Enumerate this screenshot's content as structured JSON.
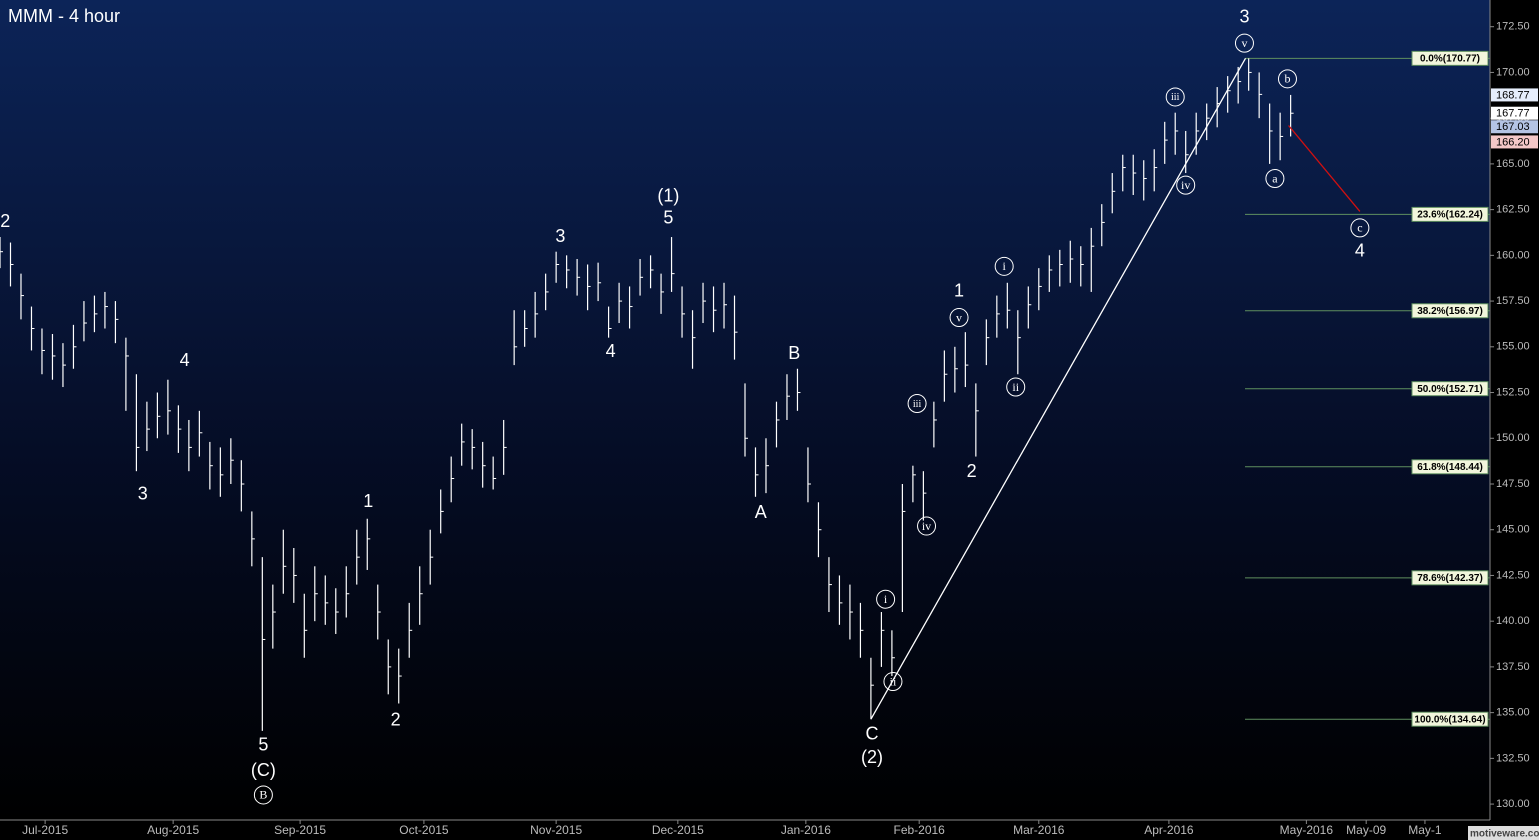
{
  "chart_data": {
    "type": "ohlc",
    "title": "MMM - 4 hour",
    "watermark": "motiveware.com",
    "x": [
      0,
      1,
      2,
      3,
      4,
      5,
      6,
      7,
      8,
      9,
      10,
      11,
      12,
      13,
      14,
      15,
      16,
      17,
      18,
      19,
      20,
      21,
      22,
      23,
      24,
      25,
      26,
      27,
      28,
      29,
      30,
      31,
      32,
      33,
      34,
      35,
      36,
      37,
      38,
      39,
      40,
      41,
      42,
      43,
      44,
      45,
      46,
      47,
      48,
      49,
      50,
      51,
      52,
      53,
      54,
      55,
      56,
      57,
      58,
      59,
      60,
      61,
      62,
      63,
      64,
      65,
      66,
      67,
      68,
      69,
      70,
      71,
      72,
      73,
      74,
      75,
      76,
      77,
      78,
      79,
      80,
      81,
      82,
      83,
      84,
      85,
      86,
      87,
      88,
      89,
      90,
      91,
      92,
      93,
      94,
      95,
      96,
      97,
      98,
      99,
      100,
      101,
      102,
      103,
      104,
      105,
      106,
      107,
      108,
      109,
      110,
      111,
      112,
      113,
      114,
      115,
      116,
      117,
      118,
      119,
      120,
      121,
      122,
      123
    ],
    "high": [
      161.0,
      160.7,
      159.0,
      157.2,
      156.0,
      155.7,
      155.2,
      156.2,
      157.5,
      157.8,
      158.0,
      157.5,
      155.5,
      153.5,
      152.0,
      152.5,
      153.2,
      151.8,
      151.0,
      151.5,
      149.8,
      149.5,
      150.0,
      148.8,
      146.0,
      143.5,
      142.0,
      145.0,
      144.0,
      141.5,
      143.0,
      142.5,
      141.8,
      143.0,
      145.0,
      145.6,
      142.0,
      139.0,
      138.5,
      141.0,
      143.0,
      145.0,
      147.2,
      149.0,
      150.8,
      150.5,
      149.8,
      149.0,
      151.0,
      157.0,
      157.0,
      158.0,
      159.0,
      160.2,
      160.0,
      159.8,
      159.5,
      159.6,
      157.2,
      158.5,
      158.3,
      159.8,
      160.0,
      159.0,
      161.0,
      158.3,
      157.0,
      158.5,
      158.3,
      158.5,
      157.8,
      153.0,
      149.5,
      150.0,
      152.0,
      153.5,
      153.8,
      149.5,
      146.5,
      143.5,
      142.5,
      142.0,
      141.0,
      138.0,
      140.5,
      139.5,
      147.5,
      148.5,
      148.2,
      152.0,
      154.8,
      155.0,
      155.8,
      153.0,
      156.5,
      157.8,
      158.5,
      157.0,
      158.3,
      159.3,
      160.0,
      160.3,
      160.8,
      160.5,
      161.5,
      162.8,
      164.5,
      165.5,
      165.5,
      165.2,
      165.8,
      167.3,
      167.8,
      166.8,
      167.8,
      168.3,
      169.2,
      169.8,
      170.3,
      170.77,
      170.0,
      168.3,
      167.8,
      168.77
    ],
    "low": [
      159.3,
      158.3,
      156.5,
      154.8,
      153.5,
      153.2,
      152.8,
      153.8,
      155.3,
      155.8,
      156.0,
      155.2,
      151.5,
      148.2,
      149.3,
      150.0,
      150.2,
      149.2,
      148.2,
      149.0,
      147.2,
      146.8,
      147.5,
      146.0,
      143.0,
      134.0,
      138.5,
      141.5,
      141.0,
      138.0,
      140.0,
      139.8,
      139.3,
      140.2,
      142.0,
      142.8,
      139.0,
      136.0,
      135.5,
      138.0,
      139.8,
      142.0,
      144.8,
      146.5,
      148.5,
      148.3,
      147.3,
      147.2,
      148.0,
      154.0,
      155.0,
      155.5,
      157.0,
      158.5,
      158.2,
      157.8,
      157.0,
      157.5,
      155.5,
      156.3,
      156.0,
      157.8,
      158.2,
      156.8,
      158.0,
      155.5,
      153.8,
      156.3,
      155.8,
      156.0,
      154.3,
      149.0,
      146.8,
      147.0,
      149.5,
      151.0,
      151.5,
      146.5,
      143.5,
      140.5,
      139.8,
      139.0,
      138.0,
      134.64,
      137.5,
      137.0,
      140.5,
      146.5,
      145.5,
      149.5,
      152.0,
      152.5,
      152.8,
      149.0,
      154.0,
      155.5,
      156.0,
      153.5,
      156.0,
      157.0,
      158.0,
      158.3,
      158.5,
      158.3,
      158.0,
      160.5,
      162.3,
      163.5,
      163.3,
      163.0,
      163.5,
      165.0,
      165.5,
      164.5,
      165.5,
      166.3,
      167.0,
      167.8,
      168.3,
      169.0,
      167.5,
      165.0,
      165.2,
      166.5
    ],
    "close": [
      160.2,
      159.5,
      157.8,
      156,
      154.8,
      154.5,
      154,
      155,
      156.3,
      156.8,
      157.2,
      156.5,
      154.5,
      149.5,
      150.5,
      151.2,
      151.5,
      150.5,
      149.5,
      150.3,
      148.5,
      148,
      148.8,
      147.5,
      144.5,
      139,
      140.5,
      143,
      142.5,
      139.5,
      141.5,
      141,
      140.5,
      141.5,
      143.5,
      144.5,
      140.5,
      137.5,
      137,
      139.5,
      141.5,
      143.5,
      146,
      147.8,
      149.8,
      149.5,
      148.5,
      147.8,
      149.5,
      155,
      156,
      156.8,
      158,
      159.5,
      159.2,
      158.8,
      158.3,
      158.5,
      156,
      157.5,
      157.2,
      158.8,
      159.2,
      158,
      159,
      156.8,
      155.5,
      157.5,
      157,
      157.3,
      155.8,
      150,
      148,
      148.5,
      151,
      152.3,
      152.5,
      147.5,
      145,
      142,
      141,
      140.5,
      139.5,
      136.5,
      139.5,
      138,
      146,
      148,
      147,
      151,
      153.5,
      153.8,
      154,
      151.5,
      155.5,
      156.8,
      157,
      155.5,
      157.3,
      158.3,
      159.2,
      159.5,
      159.8,
      159.5,
      160.5,
      161.8,
      163.5,
      164.8,
      164.5,
      164.2,
      164.8,
      166.3,
      166.8,
      165.5,
      166.8,
      167.5,
      168.3,
      169,
      169.5,
      170,
      168.8,
      166.8,
      166.5,
      167.77
    ],
    "color": "#ffffff",
    "xlim": [
      0,
      142
    ],
    "ylim": [
      129.13,
      173.96
    ],
    "xticks": [
      {
        "value": 4.3,
        "label": "Jul-2015"
      },
      {
        "value": 16.5,
        "label": "Aug-2015"
      },
      {
        "value": 28.6,
        "label": "Sep-2015"
      },
      {
        "value": 40.4,
        "label": "Oct-2015"
      },
      {
        "value": 53,
        "label": "Nov-2015"
      },
      {
        "value": 64.6,
        "label": "Dec-2015"
      },
      {
        "value": 76.8,
        "label": "Jan-2016"
      },
      {
        "value": 87.6,
        "label": "Feb-2016"
      },
      {
        "value": 99,
        "label": "Mar-2016"
      },
      {
        "value": 111.4,
        "label": "Apr-2016"
      },
      {
        "value": 124.5,
        "label": "May-2016"
      },
      {
        "value": 130.2,
        "label": "May-09"
      },
      {
        "value": 135.8,
        "label": "May-1"
      }
    ],
    "yticks": [
      {
        "value": 130,
        "label": "130.00"
      },
      {
        "value": 132.5,
        "label": "132.50"
      },
      {
        "value": 135,
        "label": "135.00"
      },
      {
        "value": 137.5,
        "label": "137.50"
      },
      {
        "value": 140,
        "label": "140.00"
      },
      {
        "value": 142.5,
        "label": "142.50"
      },
      {
        "value": 145,
        "label": "145.00"
      },
      {
        "value": 147.5,
        "label": "147.50"
      },
      {
        "value": 150,
        "label": "150.00"
      },
      {
        "value": 152.5,
        "label": "152.50"
      },
      {
        "value": 155,
        "label": "155.00"
      },
      {
        "value": 157.5,
        "label": "157.50"
      },
      {
        "value": 160,
        "label": "160.00"
      },
      {
        "value": 162.5,
        "label": "162.50"
      },
      {
        "value": 165,
        "label": "165.00"
      },
      {
        "value": 167.5,
        "label": "167.50"
      },
      {
        "value": 170,
        "label": "170.00"
      },
      {
        "value": 172.5,
        "label": "172.50"
      }
    ],
    "fib_levels": [
      {
        "value": 170.77,
        "label": "0.0%(170.77)"
      },
      {
        "value": 162.24,
        "label": "23.6%(162.24)"
      },
      {
        "value": 156.97,
        "label": "38.2%(156.97)"
      },
      {
        "value": 152.71,
        "label": "50.0%(152.71)"
      },
      {
        "value": 148.44,
        "label": "61.8%(148.44)"
      },
      {
        "value": 142.37,
        "label": "78.6%(142.37)"
      },
      {
        "value": 134.64,
        "label": "100.0%(134.64)"
      }
    ],
    "fib_color": "#5f8f5f",
    "price_tags": [
      {
        "value": 168.77,
        "color": "#e6eefc"
      },
      {
        "value": 167.77,
        "color": "#ffffff"
      },
      {
        "value": 167.03,
        "color": "#b4c4e4"
      },
      {
        "value": 166.2,
        "label": "166.20",
        "color": "#f4c8c8"
      }
    ],
    "lines": [
      {
        "x": [
          83,
          118.7
        ],
        "y": [
          134.64,
          170.77
        ],
        "color": "#ffffff"
      },
      {
        "x": [
          122.8,
          129.6
        ],
        "y": [
          167.1,
          162.4
        ],
        "color": "#d01010"
      }
    ],
    "annotations": [
      {
        "text": "2",
        "x": 0.5,
        "y": 161.8
      },
      {
        "text": "4",
        "x": 17.6,
        "y": 154.2
      },
      {
        "text": "3",
        "x": 13.6,
        "y": 146.9
      },
      {
        "text": "5",
        "x": 25.1,
        "y": 133.2
      },
      {
        "text": "(C)",
        "x": 25.1,
        "y": 131.8
      },
      {
        "text": "B",
        "x": 25.1,
        "y": 130.5,
        "circled": true
      },
      {
        "text": "1",
        "x": 35.1,
        "y": 146.5
      },
      {
        "text": "2",
        "x": 37.7,
        "y": 134.55
      },
      {
        "text": "3",
        "x": 53.4,
        "y": 161.0
      },
      {
        "text": "4",
        "x": 58.2,
        "y": 154.7
      },
      {
        "text": "(1)",
        "x": 63.7,
        "y": 163.2
      },
      {
        "text": "5",
        "x": 63.7,
        "y": 162.0
      },
      {
        "text": "B",
        "x": 75.7,
        "y": 154.6
      },
      {
        "text": "A",
        "x": 72.5,
        "y": 145.9
      },
      {
        "text": "C",
        "x": 83.1,
        "y": 133.8
      },
      {
        "text": "(2)",
        "x": 83.1,
        "y": 132.5
      },
      {
        "text": "i",
        "x": 84.4,
        "y": 141.2,
        "circled": true
      },
      {
        "text": "ii",
        "x": 85.1,
        "y": 136.7,
        "circled": true
      },
      {
        "text": "iii",
        "x": 87.4,
        "y": 151.9,
        "circled": true
      },
      {
        "text": "iv",
        "x": 88.3,
        "y": 145.2,
        "circled": true
      },
      {
        "text": "v",
        "x": 91.4,
        "y": 156.6,
        "circled": true
      },
      {
        "text": "1",
        "x": 91.4,
        "y": 158.0
      },
      {
        "text": "2",
        "x": 92.6,
        "y": 148.15
      },
      {
        "text": "i",
        "x": 95.7,
        "y": 159.4,
        "circled": true
      },
      {
        "text": "ii",
        "x": 96.8,
        "y": 152.8,
        "circled": true
      },
      {
        "text": "iii",
        "x": 112,
        "y": 168.66,
        "circled": true
      },
      {
        "text": "iv",
        "x": 113,
        "y": 163.84,
        "circled": true
      },
      {
        "text": "3",
        "x": 118.6,
        "y": 173.0
      },
      {
        "text": "v",
        "x": 118.6,
        "y": 171.6,
        "circled": true
      },
      {
        "text": "b",
        "x": 122.7,
        "y": 169.65,
        "circled": true
      },
      {
        "text": "a",
        "x": 121.5,
        "y": 164.2,
        "circled": true
      },
      {
        "text": "c",
        "x": 129.6,
        "y": 161.5,
        "circled": true
      },
      {
        "text": "4",
        "x": 129.6,
        "y": 160.2
      }
    ]
  }
}
